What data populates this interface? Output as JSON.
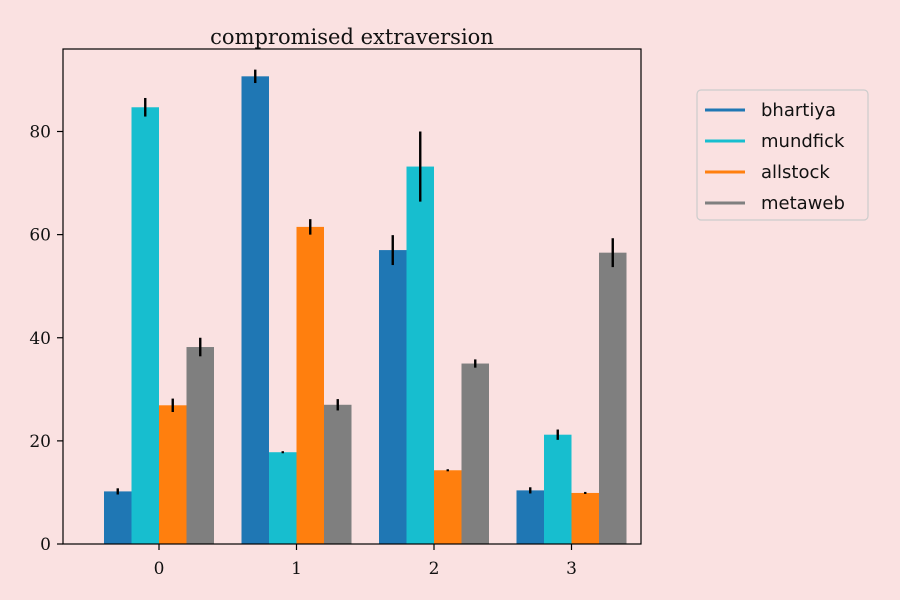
{
  "chart_data": {
    "type": "bar",
    "title": "compromised extraversion",
    "xlabel": "",
    "ylabel": "",
    "categories": [
      "0",
      "1",
      "2",
      "3"
    ],
    "ylim": [
      0,
      96
    ],
    "yticks": [
      0,
      20,
      40,
      60,
      80
    ],
    "grid": false,
    "legend_position": "outside-right",
    "series": [
      {
        "name": "bhartiya",
        "color": "#1f77b4",
        "values": [
          10.2,
          90.7,
          57.0,
          10.4
        ],
        "errors": [
          0.6,
          1.3,
          2.9,
          0.6
        ]
      },
      {
        "name": "mundfick",
        "color": "#17becf",
        "values": [
          84.7,
          17.8,
          73.2,
          21.2
        ],
        "errors": [
          1.8,
          0.2,
          6.8,
          1.0
        ]
      },
      {
        "name": "allstock",
        "color": "#ff7f0e",
        "values": [
          26.9,
          61.5,
          14.3,
          9.9
        ],
        "errors": [
          1.3,
          1.5,
          0.2,
          0.2
        ]
      },
      {
        "name": "metaweb",
        "color": "#7f7f7f",
        "values": [
          38.2,
          27.0,
          35.0,
          56.5
        ],
        "errors": [
          1.8,
          1.1,
          0.8,
          2.8
        ]
      }
    ]
  }
}
